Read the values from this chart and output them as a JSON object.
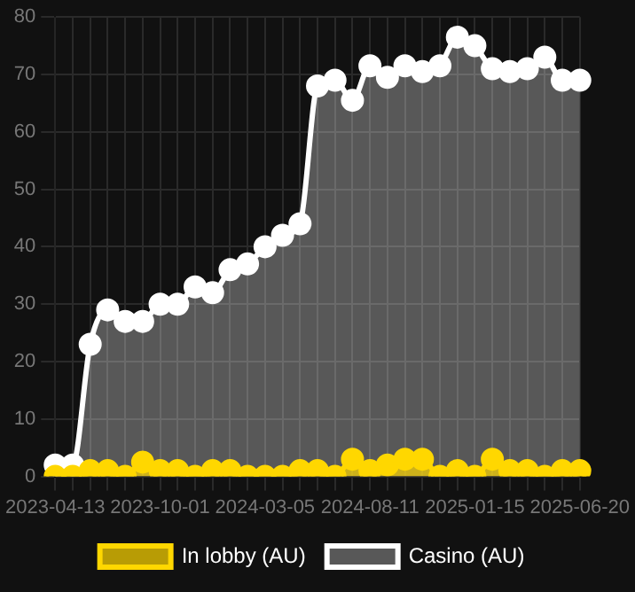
{
  "chart_data": {
    "type": "area",
    "categories": [
      "2023-04-13",
      null,
      null,
      null,
      null,
      null,
      "2023-10-01",
      null,
      null,
      null,
      null,
      null,
      "2024-03-05",
      null,
      null,
      null,
      null,
      null,
      "2024-08-11",
      null,
      null,
      null,
      null,
      null,
      "2025-01-15",
      null,
      null,
      null,
      null,
      null,
      "2025-06-20"
    ],
    "series": [
      {
        "name": "In lobby (AU)",
        "color": "#ffd700",
        "values": [
          0,
          0,
          1,
          1,
          0,
          2.5,
          1,
          1,
          0,
          1,
          1,
          0,
          0,
          0,
          1,
          1,
          0,
          3,
          1,
          2,
          3,
          3,
          0,
          1,
          0,
          3,
          1,
          1,
          0,
          1,
          1
        ]
      },
      {
        "name": "Casino (AU)",
        "color": "#ffffff",
        "values": [
          2,
          2,
          23,
          29,
          27,
          27,
          30,
          30,
          33,
          32,
          36,
          37,
          40,
          42,
          44,
          68,
          69,
          65.5,
          71.5,
          69.5,
          71.5,
          70.5,
          71.5,
          76.5,
          75,
          71,
          70.5,
          71,
          73,
          69,
          69
        ]
      }
    ],
    "ylim": [
      0,
      80
    ],
    "yticks": [
      0,
      10,
      20,
      30,
      40,
      50,
      60,
      70,
      80
    ],
    "grid": true,
    "legend": "bottom",
    "marker": "circle"
  }
}
